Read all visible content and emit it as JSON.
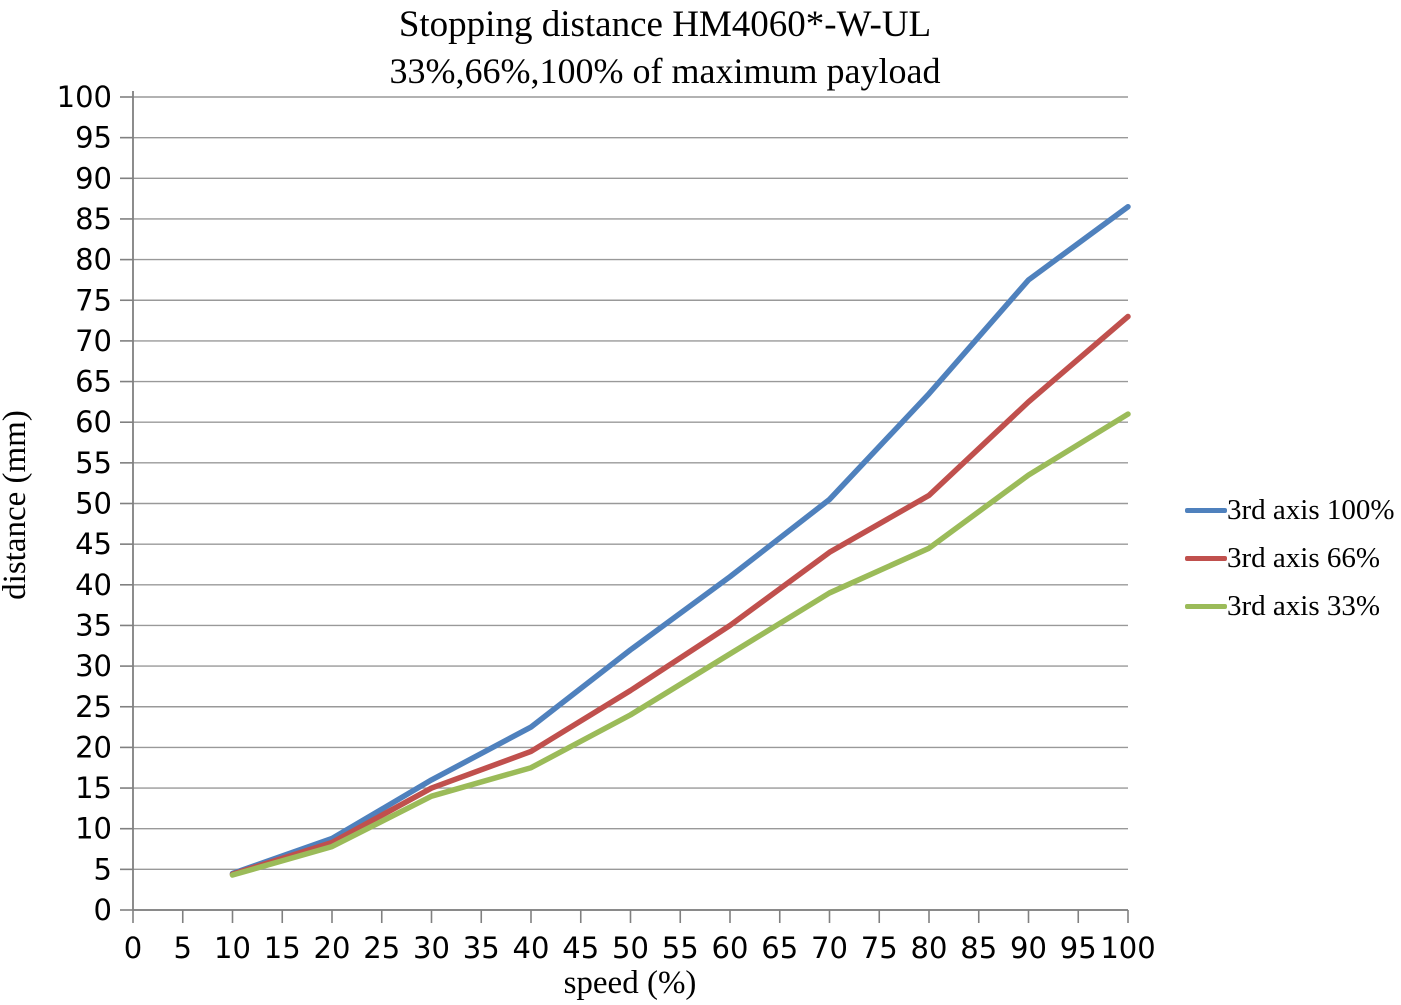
{
  "chart_data": {
    "type": "line",
    "title": "Stopping distance HM4060*-W-UL",
    "subtitle": "33%,66%,100% of maximum payload",
    "xlabel": "speed (%)",
    "ylabel": "distance (mm)",
    "xlim": [
      0,
      100
    ],
    "ylim": [
      0,
      100
    ],
    "x_tick_step": 5,
    "y_tick_step": 5,
    "grid": "horizontal gridlines on",
    "legend_position": "right",
    "axis_color": "#808080",
    "gridline_color": "#999999",
    "x": [
      10,
      20,
      30,
      40,
      50,
      60,
      70,
      80,
      90,
      100
    ],
    "series": [
      {
        "name": "3rd axis 100%",
        "color": "#4F81BD",
        "values": [
          4.5,
          8.8,
          16,
          22.5,
          32,
          41,
          50.5,
          63.5,
          77.5,
          86.5
        ]
      },
      {
        "name": "3rd axis 66%",
        "color": "#C0504D",
        "values": [
          4.4,
          8.3,
          15,
          19.5,
          27,
          35,
          44,
          51,
          62.5,
          73
        ]
      },
      {
        "name": "3rd axis 33%",
        "color": "#9BBB59",
        "values": [
          4.3,
          7.8,
          14,
          17.5,
          24,
          31.5,
          39,
          44.5,
          53.5,
          61
        ]
      }
    ]
  }
}
